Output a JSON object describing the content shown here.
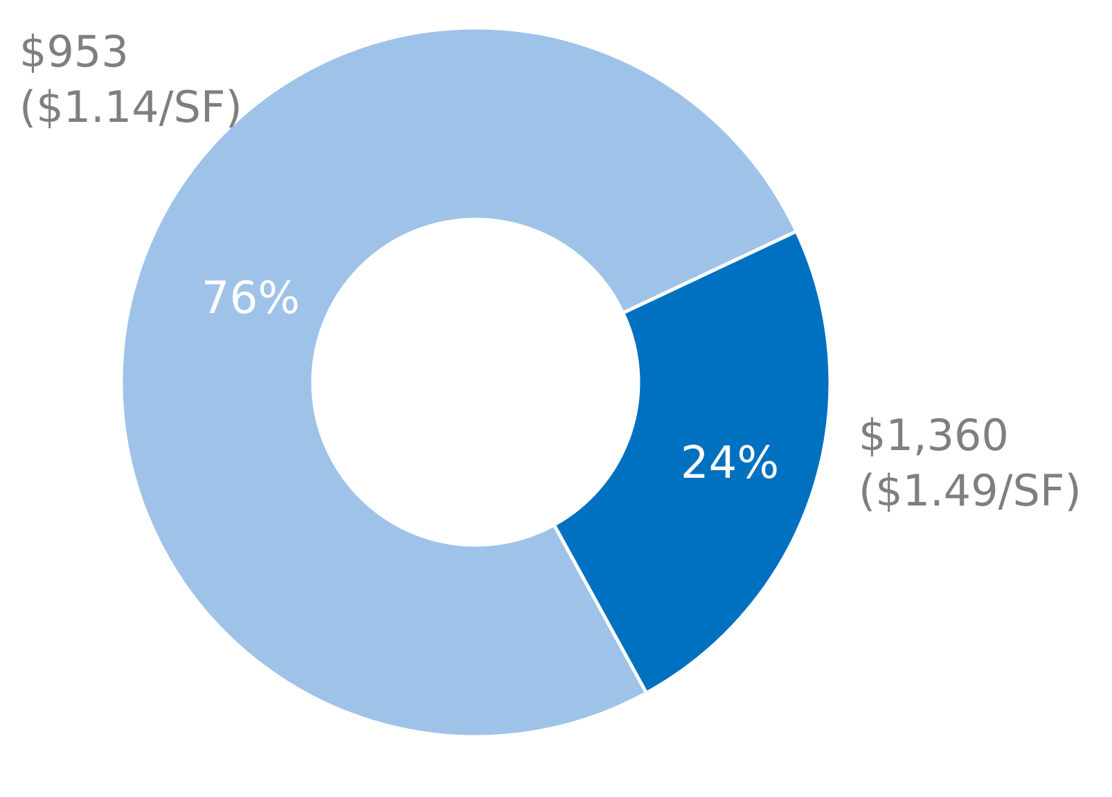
{
  "chart_data": {
    "type": "pie",
    "donut": true,
    "slices": [
      {
        "percent": 76,
        "percent_label": "76%",
        "value_label": "$953",
        "per_sf_label": "($1.14/SF)",
        "color": "#9fc3e8"
      },
      {
        "percent": 24,
        "percent_label": "24%",
        "value_label": "$1,360",
        "per_sf_label": "($1.49/SF)",
        "color": "#0070c0"
      }
    ],
    "separator_color": "#ffffff",
    "legend": "none"
  }
}
